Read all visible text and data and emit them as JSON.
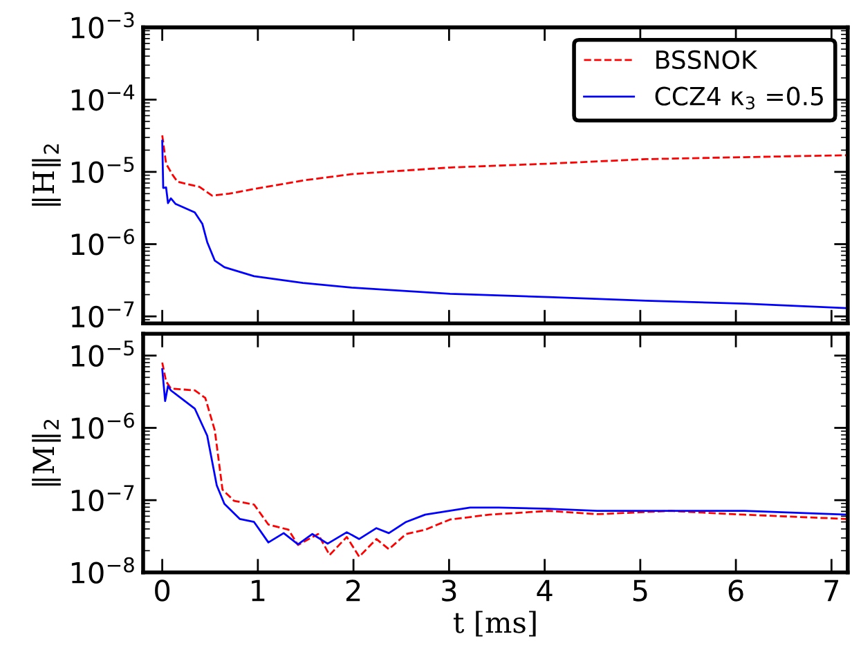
{
  "chart_data": [
    {
      "type": "line",
      "ylabel": "‖H‖$_{2}$",
      "log": "y",
      "grid": false,
      "legend": "top right",
      "tick_labels": "y",
      "xlim": [
        -0.2,
        7.17
      ],
      "xticks": [
        0,
        1,
        2,
        3,
        4,
        5,
        6,
        7
      ],
      "ylim": [
        8e-08,
        0.001
      ],
      "yticks": [
        {
          "value": 1e-07,
          "label": "10$^{−7}$"
        },
        {
          "value": 1e-06,
          "label": "10$^{−6}$"
        },
        {
          "value": 1e-05,
          "label": "10$^{−5}$"
        },
        {
          "value": 0.0001,
          "label": "10$^{−4}$"
        },
        {
          "value": 0.001,
          "label": "10$^{−3}$"
        }
      ],
      "series": [
        {
          "name": "BSSNOK",
          "color": "#ff0000",
          "line_style": "dashed",
          "x": [
            0,
            0.04,
            0.11,
            0.16,
            0.39,
            0.52,
            0.7,
            0.96,
            1.47,
            1.98,
            3.01,
            4.04,
            5.06,
            6.09,
            7.15
          ],
          "values": [
            3.2e-05,
            1.3e-05,
            9e-06,
            7.3e-06,
            6.2e-06,
            4.7e-06,
            5e-06,
            5.8e-06,
            7.6e-06,
            9.3e-06,
            1.15e-05,
            1.3e-05,
            1.5e-05,
            1.6e-05,
            1.7e-05
          ]
        },
        {
          "name": "CCZ4 κ$_{3}$ =0.5",
          "color": "#0000ff",
          "line_style": "solid",
          "x": [
            0,
            0.01,
            0.04,
            0.06,
            0.09,
            0.14,
            0.34,
            0.42,
            0.47,
            0.55,
            0.65,
            0.96,
            1.47,
            1.98,
            3.01,
            4.04,
            5.06,
            6.09,
            7.15
          ],
          "values": [
            2.7e-05,
            6e-06,
            6.1e-06,
            3.7e-06,
            4.3e-06,
            3.6e-06,
            2.75e-06,
            1.9e-06,
            1.07e-06,
            5.9e-07,
            4.8e-07,
            3.6e-07,
            2.9e-07,
            2.5e-07,
            2.05e-07,
            1.85e-07,
            1.65e-07,
            1.5e-07,
            1.3e-07
          ]
        }
      ]
    },
    {
      "type": "line",
      "ylabel": "‖M‖$_{2}$",
      "xlabel": "t [ms]",
      "log": "y",
      "grid": false,
      "xlim": [
        -0.2,
        7.17
      ],
      "xticks": [
        0,
        1,
        2,
        3,
        4,
        5,
        6,
        7
      ],
      "ylim": [
        1e-08,
        2e-05
      ],
      "yticks": [
        {
          "value": 1e-08,
          "label": "10$^{−8}$"
        },
        {
          "value": 1e-07,
          "label": "10$^{−7}$"
        },
        {
          "value": 1e-06,
          "label": "10$^{−6}$"
        },
        {
          "value": 1e-05,
          "label": "10$^{−5}$"
        }
      ],
      "series": [
        {
          "color": "#ff0000",
          "line_style": "dashed",
          "x": [
            0,
            0.04,
            0.09,
            0.34,
            0.45,
            0.55,
            0.63,
            0.75,
            0.96,
            1.11,
            1.32,
            1.42,
            1.63,
            1.75,
            1.93,
            2.06,
            2.24,
            2.37,
            2.55,
            2.75,
            3.01,
            3.42,
            4.04,
            4.55,
            5.32,
            6.09,
            7.15
          ],
          "values": [
            8e-06,
            4.4e-06,
            3.5e-06,
            3.3e-06,
            2.6e-06,
            9.2e-07,
            1.4e-07,
            9.8e-08,
            8.7e-08,
            4.6e-08,
            3.9e-08,
            2.4e-08,
            3.4e-08,
            1.74e-08,
            3.1e-08,
            1.65e-08,
            2.9e-08,
            2.1e-08,
            3.4e-08,
            3.9e-08,
            5.4e-08,
            6.3e-08,
            7.1e-08,
            6.4e-08,
            7.1e-08,
            6.3e-08,
            5.5e-08
          ]
        },
        {
          "color": "#0000ff",
          "line_style": "solid",
          "x": [
            0,
            0.03,
            0.06,
            0.09,
            0.34,
            0.47,
            0.57,
            0.65,
            0.81,
            0.96,
            1.11,
            1.27,
            1.42,
            1.57,
            1.73,
            1.93,
            2.06,
            2.24,
            2.37,
            2.55,
            2.75,
            3.22,
            3.52,
            4.04,
            4.55,
            5.32,
            6.09,
            7.15
          ],
          "values": [
            6.5e-06,
            2.35e-06,
            3.8e-06,
            3.3e-06,
            1.85e-06,
            7.8e-07,
            1.6e-07,
            8.9e-08,
            5.5e-08,
            5e-08,
            2.6e-08,
            3.5e-08,
            2.45e-08,
            3.4e-08,
            2.5e-08,
            3.6e-08,
            2.9e-08,
            4.1e-08,
            3.5e-08,
            5e-08,
            6.3e-08,
            7.9e-08,
            7.9e-08,
            7.6e-08,
            7.1e-08,
            7.1e-08,
            7.1e-08,
            6.3e-08
          ]
        }
      ]
    }
  ]
}
